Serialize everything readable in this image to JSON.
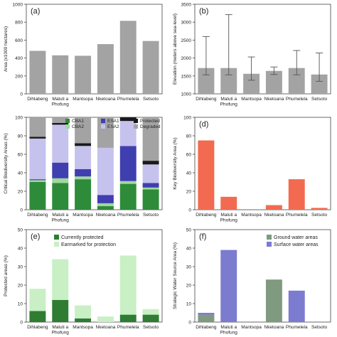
{
  "chart_data": [
    {
      "panel": "(a)",
      "type": "bar",
      "categories": [
        "Dihlabeng",
        "Maluti a Phofung",
        "Mantsopa",
        "Nketoana",
        "Phumelela",
        "Setsoto"
      ],
      "values": [
        480,
        430,
        425,
        555,
        815,
        590
      ],
      "ylabel": "Area (x1000 hectares)",
      "ylim": [
        0,
        1000
      ],
      "yticks": [
        0,
        200,
        400,
        600,
        800,
        1000
      ],
      "colors": {
        "bar": "#a3a3a3"
      }
    },
    {
      "panel": "(b)",
      "type": "bar",
      "categories": [
        "Dihlabeng",
        "Maluti a Phofung",
        "Mantsopa",
        "Nketoana",
        "Phumelela",
        "Setsoto"
      ],
      "values": [
        1720,
        1720,
        1560,
        1640,
        1720,
        1540
      ],
      "error_low": [
        1530,
        1530,
        1380,
        1540,
        1530,
        1350
      ],
      "error_high": [
        2600,
        3210,
        2030,
        1750,
        2210,
        2140
      ],
      "ylabel": "Elevation (meters above sea-level)",
      "ylim": [
        1000,
        3500
      ],
      "yticks": [
        1000,
        1500,
        2000,
        2500,
        3000,
        3500
      ],
      "colors": {
        "bar": "#a3a3a3"
      }
    },
    {
      "panel": "(c)",
      "type": "bar",
      "stacked": true,
      "categories": [
        "Dihlabeng",
        "Maluti a Phofung",
        "Mantsopa",
        "Nketoana",
        "Phumelela",
        "Setsoto"
      ],
      "series": [
        {
          "name": "CBA1",
          "values": [
            30,
            29,
            33,
            4,
            28,
            22
          ],
          "color": "#2e8b3a"
        },
        {
          "name": "CBA2",
          "values": [
            2,
            5,
            3,
            3,
            3,
            2
          ],
          "color": "#9fd99b"
        },
        {
          "name": "ESA1",
          "values": [
            1,
            17,
            8,
            9,
            38,
            5
          ],
          "color": "#3f3fb0"
        },
        {
          "name": "ESA2",
          "values": [
            44,
            41,
            25,
            51,
            27,
            20
          ],
          "color": "#c6c2ee"
        },
        {
          "name": "Protected",
          "values": [
            2,
            2,
            3,
            0,
            4,
            4
          ],
          "color": "#1a1a1a"
        },
        {
          "name": "Degraded",
          "values": [
            21,
            6,
            28,
            33,
            0,
            47
          ],
          "color": "#a3a3a3"
        }
      ],
      "ylabel": "Critical Biodiversity Areas (%)",
      "ylim": [
        0,
        100
      ],
      "yticks": [
        0,
        20,
        40,
        60,
        80,
        100
      ],
      "legend": "top"
    },
    {
      "panel": "(d)",
      "type": "bar",
      "categories": [
        "Dihlabeng",
        "Maluti a Phofung",
        "Mantsopa",
        "Nketoana",
        "Phumelela",
        "Setsoto"
      ],
      "values": [
        75,
        14,
        0,
        5,
        33,
        2
      ],
      "ylabel": "Key Biodiversity Area (%)",
      "ylim": [
        0,
        100
      ],
      "yticks": [
        0,
        20,
        40,
        60,
        80,
        100
      ],
      "colors": {
        "bar": "#f26b50"
      }
    },
    {
      "panel": "(e)",
      "type": "bar",
      "stacked": true,
      "categories": [
        "Dihlabeng",
        "Maluti a Phofung",
        "Mantsopa",
        "Nketoana",
        "Phumelela",
        "Setsoto"
      ],
      "series": [
        {
          "name": "Currently protected",
          "values": [
            6,
            12,
            2,
            0,
            4,
            4
          ],
          "color": "#2e7d32"
        },
        {
          "name": "Earmarked for protection",
          "values": [
            12,
            22,
            7,
            3,
            32,
            3
          ],
          "color": "#c9efc5"
        }
      ],
      "ylabel": "Protected areas (%)",
      "ylim": [
        0,
        50
      ],
      "yticks": [
        0,
        10,
        20,
        30,
        40,
        50
      ],
      "legend": "top-right"
    },
    {
      "panel": "(f)",
      "type": "bar",
      "stacked": true,
      "categories": [
        "Dihlabeng",
        "Maluti a Phofung",
        "Mantsopa",
        "Nketoana",
        "Phumelela",
        "Setsoto"
      ],
      "series": [
        {
          "name": "Ground water areas",
          "values": [
            4,
            0,
            0,
            23,
            0,
            0
          ],
          "color": "#7f9a7f"
        },
        {
          "name": "Surface water areas",
          "values": [
            1,
            39,
            0,
            0,
            17,
            0
          ],
          "color": "#7b7bd0"
        }
      ],
      "ylabel": "Strategic Water Source Area (%)",
      "ylim": [
        0,
        50
      ],
      "yticks": [
        0,
        10,
        20,
        30,
        40,
        50
      ],
      "legend": "top-right"
    }
  ]
}
